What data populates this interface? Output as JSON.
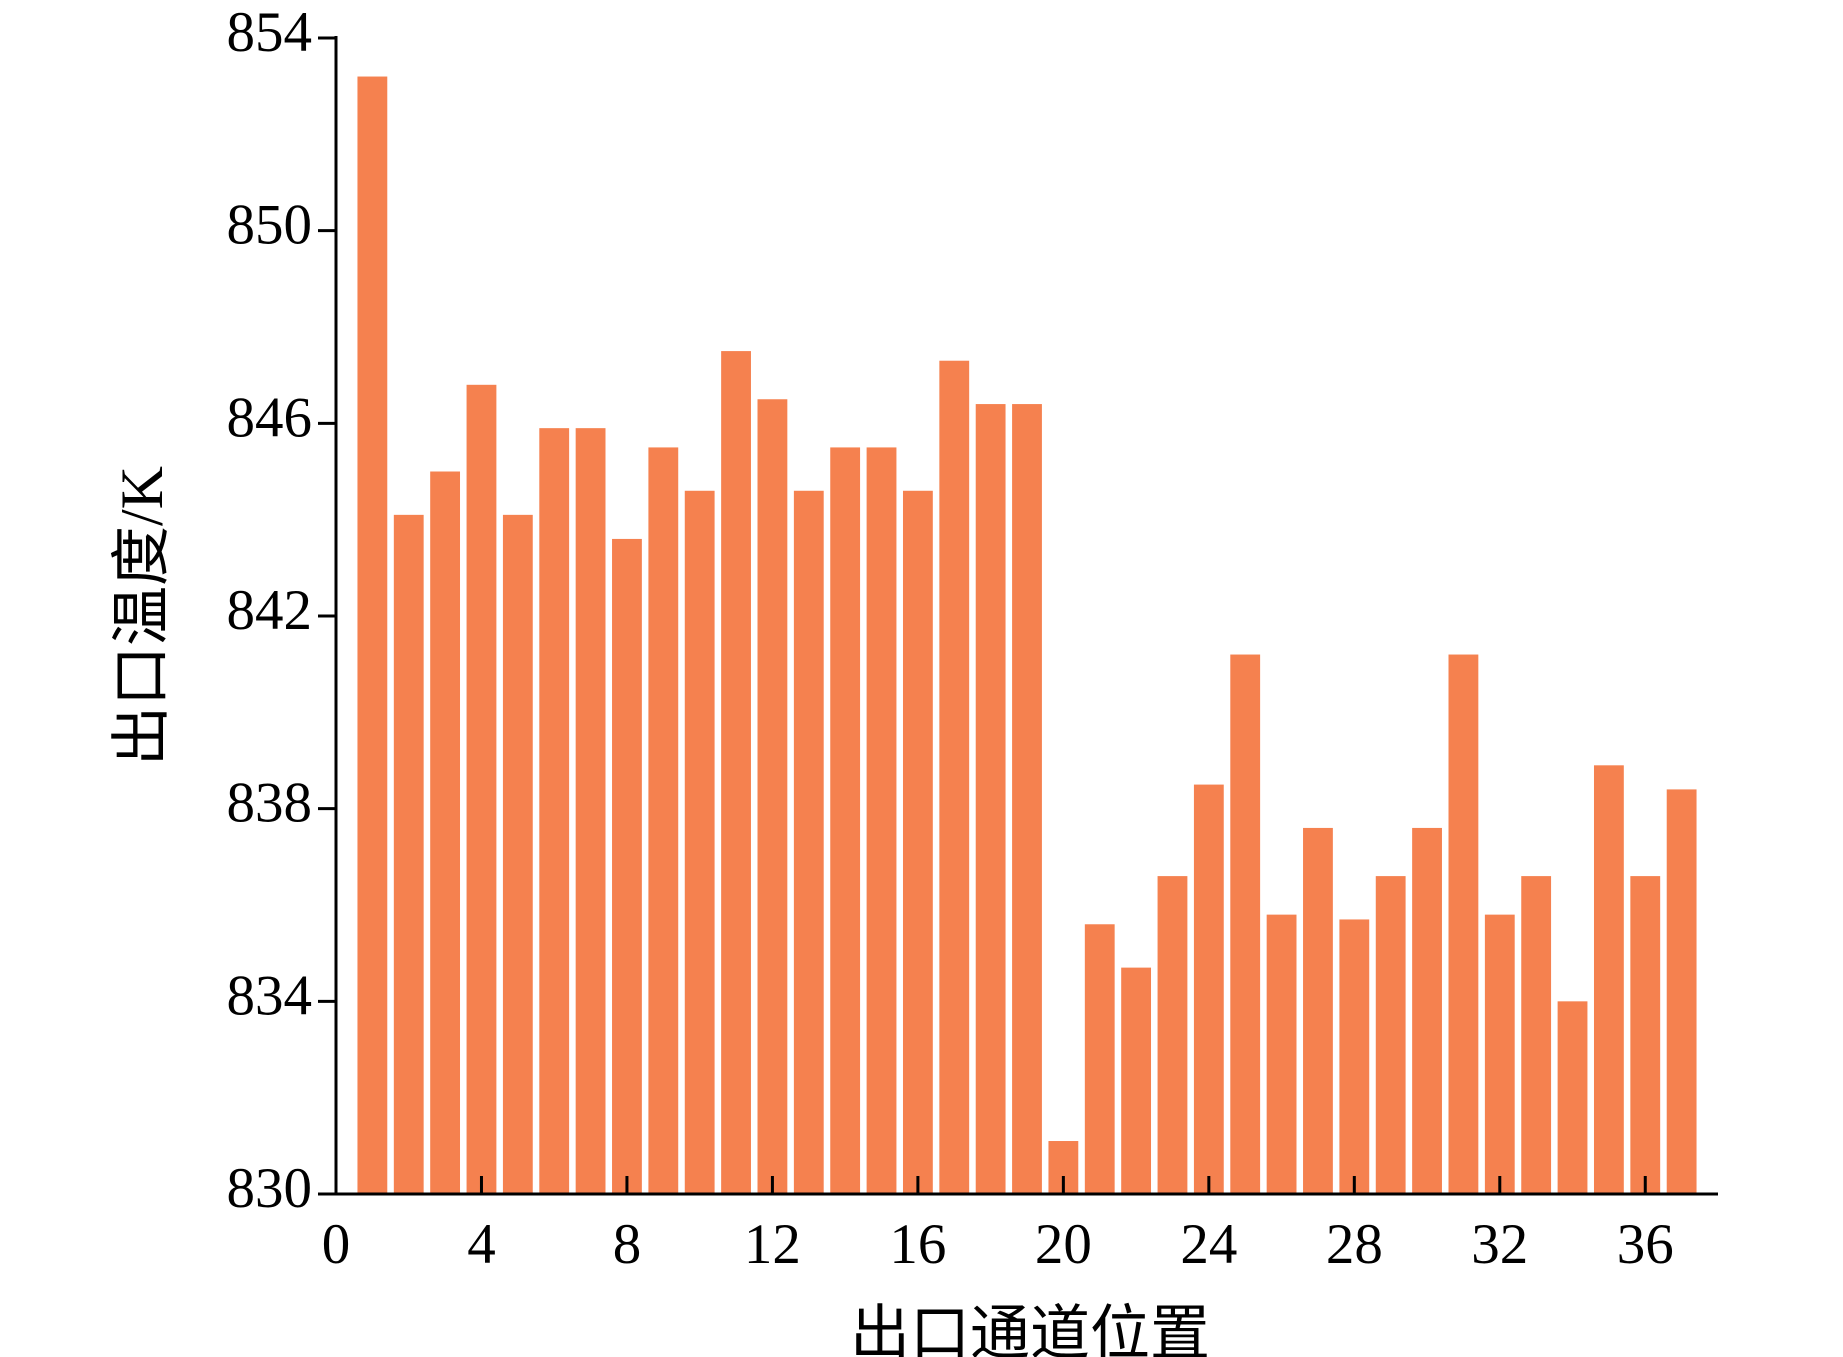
{
  "chart_data": {
    "type": "bar",
    "x_label": "出口通道位置",
    "y_label": "出口温度/K",
    "x": [
      1,
      2,
      3,
      4,
      5,
      6,
      7,
      8,
      9,
      10,
      11,
      12,
      13,
      14,
      15,
      16,
      17,
      18,
      19,
      20,
      21,
      22,
      23,
      24,
      25,
      26,
      27,
      28,
      29,
      30,
      31,
      32,
      33,
      34,
      35,
      36,
      37
    ],
    "values": [
      853.2,
      844.1,
      845.0,
      846.8,
      844.1,
      845.9,
      845.9,
      843.6,
      845.5,
      844.6,
      847.5,
      846.5,
      844.6,
      845.5,
      845.5,
      844.6,
      847.3,
      846.4,
      846.4,
      831.1,
      835.6,
      834.7,
      836.6,
      838.5,
      841.2,
      835.8,
      837.6,
      835.7,
      836.6,
      837.6,
      841.2,
      835.8,
      836.6,
      834.0,
      838.9,
      836.6,
      838.4
    ],
    "color": "#f5814f",
    "xlim": [
      0,
      38
    ],
    "xticks": [
      0,
      4,
      8,
      12,
      16,
      20,
      24,
      28,
      32,
      36
    ],
    "ylim": [
      830,
      854
    ],
    "yticks": [
      830,
      834,
      838,
      842,
      846,
      850,
      854
    ]
  }
}
